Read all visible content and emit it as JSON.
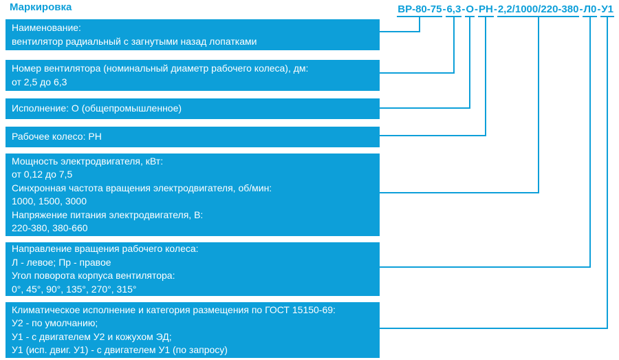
{
  "title": "Маркировка",
  "colors": {
    "accent": "#0d9fd9",
    "box_text": "#ffffff",
    "background": "#ffffff"
  },
  "code": {
    "full": "ВР-80-75-6,3-О-РН-2,2/1000/220-380-Л0-У1",
    "separator": "-",
    "segments": [
      "ВР-80-75",
      "6,3",
      "О",
      "РН",
      "2,2/1000/220-380",
      "Л0",
      "У1"
    ]
  },
  "boxes": [
    {
      "lines": [
        "Наименование:",
        "вентилятор радиальный с загнутыми назад лопатками"
      ]
    },
    {
      "lines": [
        "Номер вентилятора (номинальный диаметр рабочего колеса), дм:",
        "от 2,5 до 6,3"
      ]
    },
    {
      "lines": [
        "Исполнение: О (общепромышленное)"
      ]
    },
    {
      "lines": [
        "Рабочее колесо: РН"
      ]
    },
    {
      "lines": [
        "Мощность электродвигателя, кВт:",
        "от 0,12 до 7,5",
        "Синхронная частота вращения электродвигателя, об/мин:",
        "1000, 1500, 3000",
        "Напряжение питания электродвигателя, В:",
        "220-380, 380-660"
      ]
    },
    {
      "lines": [
        "Направление вращения рабочего колеса:",
        "Л - левое; Пр - правое",
        "Угол поворота корпуса вентилятора:",
        "0°, 45°, 90°, 135°, 270°, 315°"
      ]
    },
    {
      "lines": [
        "Климатическое исполнение и категория размещения по ГОСТ 15150-69:",
        "У2 - по умолчанию;",
        "У1 - с двигателем У2 и кожухом ЭД;",
        "У1 (исп. двиг. У1) - с двигателем У1 (по запросу)"
      ]
    }
  ]
}
